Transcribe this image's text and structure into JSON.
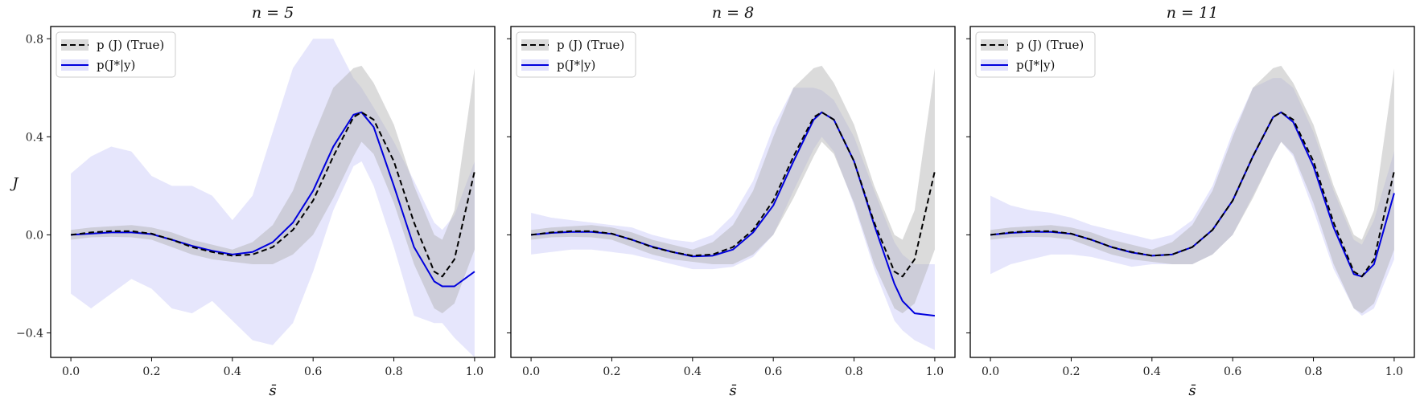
{
  "colors": {
    "true_line": "#000000",
    "true_band": "#b0b0b0",
    "pred_line": "#0000dd",
    "pred_band": "#c8c8f8"
  },
  "legend": {
    "true_label": "p (J) (True)",
    "pred_label": "p(J*|y)"
  },
  "shared": {
    "ylabel": "J",
    "xlabel": "s̄",
    "xticks": [
      "0.0",
      "0.2",
      "0.4",
      "0.6",
      "0.8",
      "1.0"
    ],
    "yticks": [
      "−0.4",
      "0.0",
      "0.4",
      "0.8"
    ],
    "xlim": [
      -0.05,
      1.05
    ],
    "ylim": [
      -0.5,
      0.85
    ]
  },
  "chart_data": [
    {
      "type": "line",
      "title": "n = 5",
      "x": [
        0.0,
        0.05,
        0.1,
        0.15,
        0.2,
        0.25,
        0.3,
        0.35,
        0.4,
        0.45,
        0.5,
        0.55,
        0.6,
        0.65,
        0.7,
        0.72,
        0.75,
        0.8,
        0.85,
        0.9,
        0.92,
        0.95,
        1.0
      ],
      "series": [
        {
          "name": "p (J) (True)",
          "values": [
            0.0,
            0.01,
            0.015,
            0.015,
            0.005,
            -0.02,
            -0.05,
            -0.07,
            -0.085,
            -0.08,
            -0.05,
            0.02,
            0.14,
            0.32,
            0.48,
            0.5,
            0.47,
            0.3,
            0.05,
            -0.15,
            -0.17,
            -0.1,
            0.26
          ],
          "band_lower": [
            -0.02,
            -0.01,
            -0.008,
            -0.01,
            -0.02,
            -0.05,
            -0.08,
            -0.1,
            -0.11,
            -0.12,
            -0.12,
            -0.08,
            0.0,
            0.15,
            0.32,
            0.38,
            0.33,
            0.13,
            -0.12,
            -0.3,
            -0.32,
            -0.28,
            -0.06
          ],
          "band_upper": [
            0.02,
            0.03,
            0.035,
            0.04,
            0.03,
            0.01,
            -0.02,
            -0.04,
            -0.06,
            -0.03,
            0.04,
            0.18,
            0.4,
            0.6,
            0.68,
            0.69,
            0.62,
            0.45,
            0.2,
            0.0,
            -0.02,
            0.1,
            0.68
          ]
        },
        {
          "name": "p(J*|y)",
          "values": [
            0.0,
            0.005,
            0.01,
            0.01,
            0.003,
            -0.02,
            -0.045,
            -0.065,
            -0.08,
            -0.07,
            -0.03,
            0.05,
            0.18,
            0.36,
            0.49,
            0.5,
            0.44,
            0.2,
            -0.05,
            -0.19,
            -0.21,
            -0.21,
            -0.15
          ],
          "band_lower": [
            -0.24,
            -0.3,
            -0.24,
            -0.18,
            -0.22,
            -0.3,
            -0.32,
            -0.27,
            -0.35,
            -0.43,
            -0.45,
            -0.36,
            -0.15,
            0.1,
            0.28,
            0.3,
            0.2,
            -0.05,
            -0.33,
            -0.36,
            -0.36,
            -0.42,
            -0.5
          ],
          "band_upper": [
            0.25,
            0.32,
            0.36,
            0.34,
            0.24,
            0.2,
            0.2,
            0.16,
            0.06,
            0.16,
            0.42,
            0.68,
            0.8,
            0.8,
            0.64,
            0.6,
            0.52,
            0.38,
            0.22,
            0.05,
            0.02,
            0.08,
            0.3
          ]
        }
      ]
    },
    {
      "type": "line",
      "title": "n = 8",
      "x": [
        0.0,
        0.05,
        0.1,
        0.15,
        0.2,
        0.25,
        0.3,
        0.35,
        0.4,
        0.45,
        0.5,
        0.55,
        0.6,
        0.65,
        0.7,
        0.72,
        0.75,
        0.8,
        0.85,
        0.9,
        0.92,
        0.95,
        1.0
      ],
      "series": [
        {
          "name": "p (J) (True)",
          "values": [
            0.0,
            0.01,
            0.015,
            0.015,
            0.005,
            -0.02,
            -0.05,
            -0.07,
            -0.085,
            -0.08,
            -0.05,
            0.02,
            0.14,
            0.32,
            0.48,
            0.5,
            0.47,
            0.3,
            0.05,
            -0.15,
            -0.17,
            -0.1,
            0.26
          ],
          "band_lower": [
            -0.02,
            -0.01,
            -0.008,
            -0.01,
            -0.02,
            -0.05,
            -0.08,
            -0.1,
            -0.11,
            -0.12,
            -0.12,
            -0.08,
            0.0,
            0.15,
            0.32,
            0.38,
            0.33,
            0.13,
            -0.12,
            -0.3,
            -0.32,
            -0.28,
            -0.06
          ],
          "band_upper": [
            0.02,
            0.03,
            0.035,
            0.04,
            0.03,
            0.01,
            -0.02,
            -0.04,
            -0.06,
            -0.03,
            0.04,
            0.18,
            0.4,
            0.6,
            0.68,
            0.69,
            0.62,
            0.45,
            0.2,
            0.0,
            -0.02,
            0.1,
            0.68
          ]
        },
        {
          "name": "p(J*|y)",
          "values": [
            0.0,
            0.008,
            0.012,
            0.012,
            0.004,
            -0.02,
            -0.048,
            -0.07,
            -0.088,
            -0.085,
            -0.06,
            0.01,
            0.12,
            0.3,
            0.47,
            0.5,
            0.47,
            0.3,
            0.04,
            -0.2,
            -0.27,
            -0.32,
            -0.33
          ],
          "band_lower": [
            -0.08,
            -0.07,
            -0.06,
            -0.06,
            -0.07,
            -0.08,
            -0.1,
            -0.12,
            -0.14,
            -0.14,
            -0.13,
            -0.09,
            0.0,
            0.18,
            0.35,
            0.4,
            0.34,
            0.12,
            -0.14,
            -0.35,
            -0.39,
            -0.43,
            -0.47
          ],
          "band_upper": [
            0.09,
            0.07,
            0.06,
            0.05,
            0.04,
            0.03,
            0.0,
            -0.02,
            -0.03,
            0.0,
            0.08,
            0.22,
            0.44,
            0.6,
            0.6,
            0.59,
            0.55,
            0.4,
            0.18,
            -0.03,
            -0.08,
            -0.12,
            -0.12
          ]
        }
      ]
    },
    {
      "type": "line",
      "title": "n = 11",
      "x": [
        0.0,
        0.05,
        0.1,
        0.15,
        0.2,
        0.25,
        0.3,
        0.35,
        0.4,
        0.45,
        0.5,
        0.55,
        0.6,
        0.65,
        0.7,
        0.72,
        0.75,
        0.8,
        0.85,
        0.9,
        0.92,
        0.95,
        1.0
      ],
      "series": [
        {
          "name": "p (J) (True)",
          "values": [
            0.0,
            0.01,
            0.015,
            0.015,
            0.005,
            -0.02,
            -0.05,
            -0.07,
            -0.085,
            -0.08,
            -0.05,
            0.02,
            0.14,
            0.32,
            0.48,
            0.5,
            0.47,
            0.3,
            0.05,
            -0.15,
            -0.17,
            -0.1,
            0.26
          ],
          "band_lower": [
            -0.02,
            -0.01,
            -0.008,
            -0.01,
            -0.02,
            -0.05,
            -0.08,
            -0.1,
            -0.11,
            -0.12,
            -0.12,
            -0.08,
            0.0,
            0.15,
            0.32,
            0.38,
            0.33,
            0.13,
            -0.12,
            -0.3,
            -0.32,
            -0.28,
            -0.06
          ],
          "band_upper": [
            0.02,
            0.03,
            0.035,
            0.04,
            0.03,
            0.01,
            -0.02,
            -0.04,
            -0.06,
            -0.03,
            0.04,
            0.18,
            0.4,
            0.6,
            0.68,
            0.69,
            0.62,
            0.45,
            0.2,
            0.0,
            -0.02,
            0.1,
            0.68
          ]
        },
        {
          "name": "p(J*|y)",
          "values": [
            0.0,
            0.008,
            0.012,
            0.012,
            0.004,
            -0.02,
            -0.05,
            -0.072,
            -0.085,
            -0.08,
            -0.05,
            0.02,
            0.14,
            0.32,
            0.48,
            0.5,
            0.46,
            0.28,
            0.03,
            -0.16,
            -0.17,
            -0.12,
            0.17
          ],
          "band_lower": [
            -0.16,
            -0.12,
            -0.1,
            -0.08,
            -0.08,
            -0.09,
            -0.11,
            -0.13,
            -0.12,
            -0.12,
            -0.12,
            -0.08,
            0.0,
            0.16,
            0.32,
            0.38,
            0.32,
            0.1,
            -0.14,
            -0.3,
            -0.33,
            -0.3,
            -0.1
          ],
          "band_upper": [
            0.16,
            0.12,
            0.1,
            0.09,
            0.07,
            0.04,
            0.02,
            0.0,
            -0.02,
            0.0,
            0.06,
            0.2,
            0.42,
            0.6,
            0.64,
            0.64,
            0.6,
            0.42,
            0.18,
            -0.02,
            -0.04,
            0.06,
            0.34
          ]
        }
      ]
    }
  ]
}
